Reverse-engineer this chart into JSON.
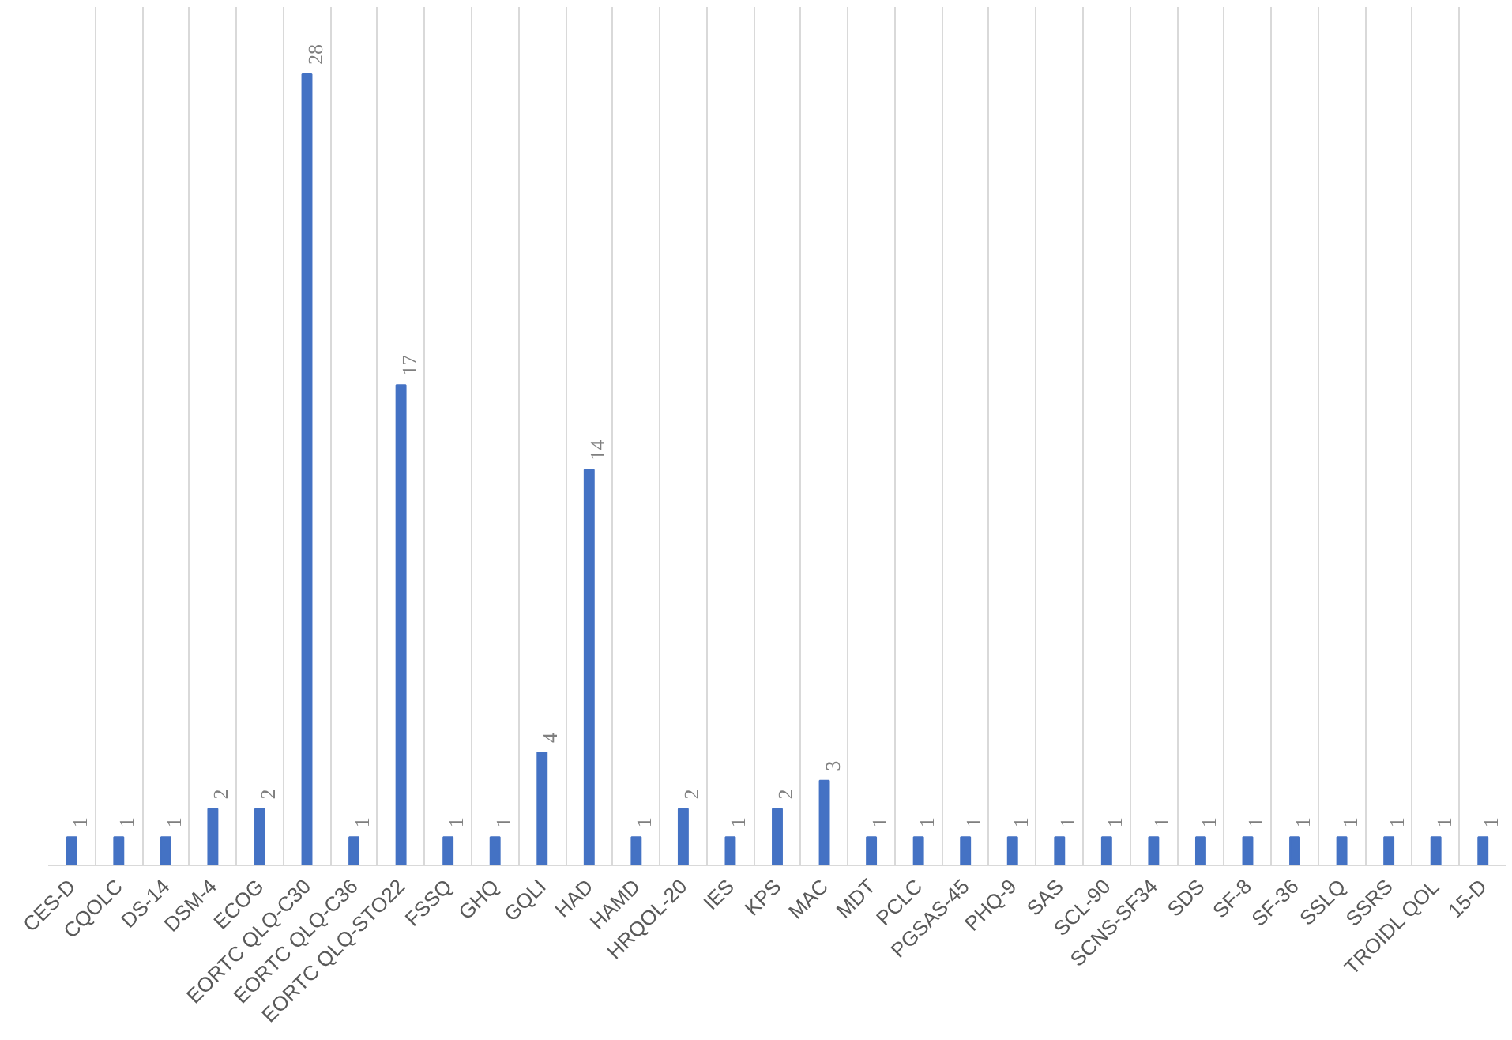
{
  "chart_data": {
    "type": "bar",
    "categories": [
      "CES-D",
      "CQOLC",
      "DS-14",
      "DSM-4",
      "ECOG",
      "EORTC QLQ-C30",
      "EORTC QLQ-C36",
      "EORTC QLQ-STO22",
      "FSSQ",
      "GHQ",
      "GQLI",
      "HAD",
      "HAMD",
      "HRQOL-20",
      "IES",
      "KPS",
      "MAC",
      "MDT",
      "PCLC",
      "PGSAS-45",
      "PHQ-9",
      "SAS",
      "SCL-90",
      "SCNS-SF34",
      "SDS",
      "SF-8",
      "SF-36",
      "SSLQ",
      "SSRS",
      "TROIDL QOL",
      "15-D"
    ],
    "values": [
      1,
      1,
      1,
      2,
      2,
      28,
      1,
      17,
      1,
      1,
      4,
      14,
      1,
      2,
      1,
      2,
      3,
      1,
      1,
      1,
      1,
      1,
      1,
      1,
      1,
      1,
      1,
      1,
      1,
      1,
      1
    ],
    "color": "#4472c4",
    "data_labels": true,
    "grid": "x",
    "tick_labels": "x"
  }
}
